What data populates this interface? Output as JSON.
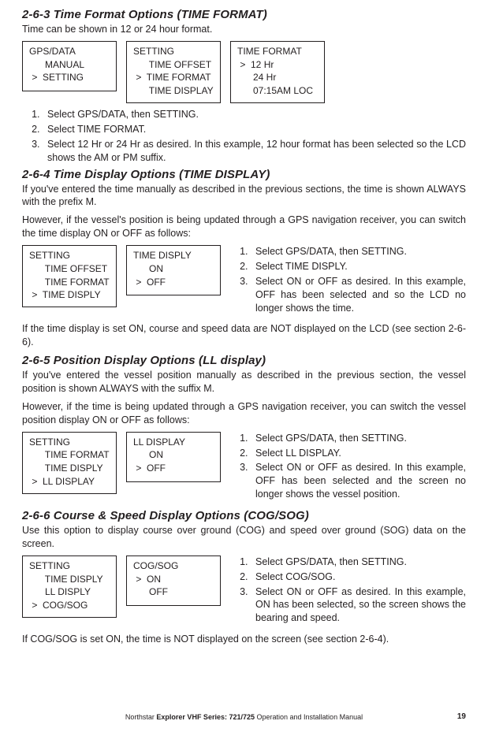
{
  "section263": {
    "heading": "2-6-3 Time Format Options (TIME FORMAT)",
    "intro": "Time can be shown in 12 or 24 hour format.",
    "boxes": [
      [
        "GPS/DATA",
        "      MANUAL",
        " >  SETTING"
      ],
      [
        "SETTING",
        "      TIME OFFSET",
        " >  TIME FORMAT",
        "      TIME DISPLAY"
      ],
      [
        "TIME FORMAT",
        " >  12 Hr",
        "      24 Hr",
        "      07:15AM LOC"
      ]
    ],
    "steps": [
      "Select GPS/DATA, then SETTING.",
      "Select TIME FORMAT.",
      "Select 12 Hr or 24 Hr as desired. In this example, 12 hour format has been selected so the LCD shows the AM or PM suffix."
    ]
  },
  "section264": {
    "heading": "2-6-4 Time Display Options (TIME DISPLAY)",
    "intro1": "If you've entered the time manually as described in the previous sections, the time is shown ALWAYS with the prefix M.",
    "intro2": "However, if the vessel's position is being updated through a GPS navigation receiver, you can switch the time display ON or OFF as follows:",
    "boxes": [
      [
        "SETTING",
        "      TIME OFFSET",
        "      TIME FORMAT",
        " >  TIME DISPLY"
      ],
      [
        "TIME DISPLY",
        "      ON",
        " >  OFF"
      ]
    ],
    "steps": [
      "Select GPS/DATA, then SETTING.",
      "Select TIME DISPLY.",
      "Select ON or OFF as desired. In this example, OFF has been selected and so the LCD no longer shows the time."
    ],
    "post": "If the time display is set ON, course and speed data are NOT displayed on the LCD (see section 2-6-6)."
  },
  "section265": {
    "heading": "2-6-5 Position Display Options (LL display)",
    "intro1": "If you've entered the vessel position manually as described in the previous section, the vessel position is shown ALWAYS with the suffix M.",
    "intro2": "However, if the time is being updated through a GPS navigation receiver, you can switch the vessel position display ON or OFF as follows:",
    "boxes": [
      [
        "SETTING",
        "      TIME FORMAT",
        "      TIME DISPLY",
        " >  LL DISPLAY"
      ],
      [
        "LL DISPLAY",
        "      ON",
        " >  OFF"
      ]
    ],
    "steps": [
      "Select GPS/DATA, then SETTING.",
      "Select LL DISPLAY.",
      "Select ON or OFF as desired. In this example, OFF has been selected and the screen no longer shows the vessel position."
    ]
  },
  "section266": {
    "heading": "2-6-6 Course & Speed Display Options (COG/SOG)",
    "intro": "Use this option to display course over ground (COG) and speed over ground (SOG) data on the screen.",
    "boxes": [
      [
        "SETTING",
        "      TIME DISPLY",
        "      LL DISPLY",
        " >  COG/SOG"
      ],
      [
        "COG/SOG",
        " >  ON",
        "      OFF"
      ]
    ],
    "steps": [
      "Select GPS/DATA, then SETTING.",
      "Select COG/SOG.",
      "Select ON or OFF as desired. In this example, ON has been selected, so the screen shows the bearing and speed."
    ],
    "post": "If COG/SOG is set ON, the time is NOT displayed on the screen (see section 2-6-4)."
  },
  "footer": {
    "part1": "Northstar ",
    "part2": "Explorer VHF Series: 721/725 ",
    "part3": "Operation and Installation Manual",
    "pagenum": "19"
  }
}
